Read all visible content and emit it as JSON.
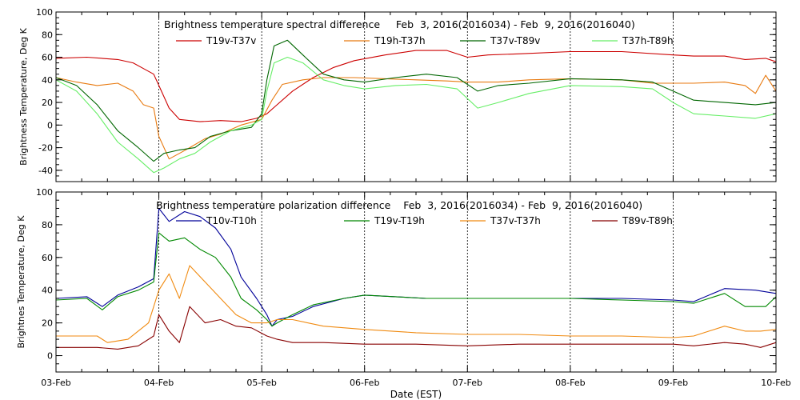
{
  "x_axis": {
    "label": "Date (EST)",
    "tick_labels": [
      "03-Feb",
      "04-Feb",
      "05-Feb",
      "06-Feb",
      "07-Feb",
      "08-Feb",
      "09-Feb",
      "10-Feb"
    ]
  },
  "chart_data": [
    {
      "type": "line",
      "title": "Brightness temperature spectral difference     Feb  3, 2016(2016034) - Feb  9, 2016(2016040)",
      "xlabel": "",
      "ylabel": "Brightness Temperature, Deg K",
      "x_unit": "days",
      "xlim": [
        0,
        7
      ],
      "ylim": [
        -50,
        100
      ],
      "yticks": [
        -40,
        -20,
        0,
        20,
        40,
        60,
        80,
        100
      ],
      "grid": "vertical dotted at each day",
      "legend": "top, in two rows inside plot",
      "series": [
        {
          "name": "T19v-T37v",
          "color": "#cc0000",
          "points": [
            [
              0,
              59
            ],
            [
              0.3,
              60
            ],
            [
              0.6,
              58
            ],
            [
              0.75,
              55
            ],
            [
              0.85,
              50
            ],
            [
              0.95,
              45
            ],
            [
              1.0,
              35
            ],
            [
              1.1,
              15
            ],
            [
              1.2,
              5
            ],
            [
              1.4,
              3
            ],
            [
              1.6,
              4
            ],
            [
              1.8,
              3
            ],
            [
              1.95,
              6
            ],
            [
              2.05,
              10
            ],
            [
              2.15,
              18
            ],
            [
              2.3,
              30
            ],
            [
              2.5,
              42
            ],
            [
              2.7,
              51
            ],
            [
              2.9,
              57
            ],
            [
              3.2,
              62
            ],
            [
              3.5,
              66
            ],
            [
              3.8,
              66
            ],
            [
              4.0,
              60
            ],
            [
              4.2,
              62
            ],
            [
              4.5,
              63
            ],
            [
              5.0,
              65
            ],
            [
              5.5,
              65
            ],
            [
              6.0,
              62
            ],
            [
              6.2,
              61
            ],
            [
              6.5,
              61
            ],
            [
              6.7,
              58
            ],
            [
              6.9,
              59
            ],
            [
              7.0,
              56
            ]
          ]
        },
        {
          "name": "T19h-T37h",
          "color": "#e87a10",
          "points": [
            [
              0,
              42
            ],
            [
              0.2,
              38
            ],
            [
              0.4,
              35
            ],
            [
              0.6,
              37
            ],
            [
              0.75,
              30
            ],
            [
              0.85,
              18
            ],
            [
              0.95,
              15
            ],
            [
              1.0,
              -10
            ],
            [
              1.1,
              -30
            ],
            [
              1.2,
              -25
            ],
            [
              1.3,
              -20
            ],
            [
              1.45,
              -12
            ],
            [
              1.6,
              -8
            ],
            [
              1.8,
              0
            ],
            [
              2.0,
              5
            ],
            [
              2.1,
              22
            ],
            [
              2.2,
              36
            ],
            [
              2.4,
              40
            ],
            [
              2.6,
              42
            ],
            [
              2.9,
              42
            ],
            [
              3.2,
              41
            ],
            [
              3.5,
              40
            ],
            [
              3.8,
              39
            ],
            [
              4.0,
              38
            ],
            [
              4.3,
              38
            ],
            [
              4.6,
              40
            ],
            [
              5.0,
              41
            ],
            [
              5.5,
              40
            ],
            [
              5.8,
              37
            ],
            [
              6.0,
              37
            ],
            [
              6.2,
              37
            ],
            [
              6.5,
              38
            ],
            [
              6.7,
              35
            ],
            [
              6.8,
              28
            ],
            [
              6.9,
              44
            ],
            [
              7.0,
              30
            ]
          ]
        },
        {
          "name": "T37v-T89v",
          "color": "#006600",
          "points": [
            [
              0,
              42
            ],
            [
              0.2,
              35
            ],
            [
              0.4,
              18
            ],
            [
              0.6,
              -5
            ],
            [
              0.8,
              -20
            ],
            [
              0.95,
              -32
            ],
            [
              1.05,
              -25
            ],
            [
              1.2,
              -22
            ],
            [
              1.35,
              -20
            ],
            [
              1.5,
              -10
            ],
            [
              1.7,
              -5
            ],
            [
              1.9,
              -2
            ],
            [
              2.0,
              10
            ],
            [
              2.05,
              40
            ],
            [
              2.12,
              70
            ],
            [
              2.25,
              75
            ],
            [
              2.4,
              62
            ],
            [
              2.6,
              45
            ],
            [
              2.8,
              40
            ],
            [
              3.0,
              38
            ],
            [
              3.3,
              42
            ],
            [
              3.6,
              45
            ],
            [
              3.9,
              42
            ],
            [
              4.1,
              30
            ],
            [
              4.3,
              35
            ],
            [
              4.6,
              37
            ],
            [
              5.0,
              41
            ],
            [
              5.5,
              40
            ],
            [
              5.8,
              38
            ],
            [
              6.0,
              30
            ],
            [
              6.2,
              22
            ],
            [
              6.5,
              20
            ],
            [
              6.8,
              18
            ],
            [
              7.0,
              20
            ]
          ]
        },
        {
          "name": "T37h-T89h",
          "color": "#66ee66",
          "points": [
            [
              0,
              40
            ],
            [
              0.2,
              30
            ],
            [
              0.4,
              10
            ],
            [
              0.6,
              -15
            ],
            [
              0.8,
              -30
            ],
            [
              0.95,
              -42
            ],
            [
              1.05,
              -38
            ],
            [
              1.2,
              -30
            ],
            [
              1.35,
              -25
            ],
            [
              1.5,
              -15
            ],
            [
              1.7,
              -5
            ],
            [
              1.9,
              0
            ],
            [
              2.0,
              5
            ],
            [
              2.05,
              30
            ],
            [
              2.12,
              55
            ],
            [
              2.25,
              60
            ],
            [
              2.4,
              55
            ],
            [
              2.6,
              40
            ],
            [
              2.8,
              35
            ],
            [
              3.0,
              32
            ],
            [
              3.3,
              35
            ],
            [
              3.6,
              36
            ],
            [
              3.9,
              32
            ],
            [
              4.1,
              15
            ],
            [
              4.3,
              20
            ],
            [
              4.6,
              28
            ],
            [
              5.0,
              35
            ],
            [
              5.5,
              34
            ],
            [
              5.8,
              32
            ],
            [
              6.0,
              20
            ],
            [
              6.2,
              10
            ],
            [
              6.5,
              8
            ],
            [
              6.8,
              6
            ],
            [
              7.0,
              10
            ]
          ]
        }
      ]
    },
    {
      "type": "line",
      "title": "Brightness temperature polarization difference    Feb  3, 2016(2016034) - Feb  9, 2016(2016040)",
      "xlabel": "Date (EST)",
      "ylabel": "Brightnes Temperature, Deg K",
      "x_unit": "days",
      "xlim": [
        0,
        7
      ],
      "ylim": [
        -10,
        100
      ],
      "yticks": [
        0,
        20,
        40,
        60,
        80,
        100
      ],
      "grid": "vertical dotted at each day",
      "legend": "top, single row inside plot",
      "series": [
        {
          "name": "T10v-T10h",
          "color": "#000099",
          "points": [
            [
              0,
              35
            ],
            [
              0.3,
              36
            ],
            [
              0.45,
              30
            ],
            [
              0.6,
              37
            ],
            [
              0.8,
              42
            ],
            [
              0.95,
              47
            ],
            [
              1.0,
              90
            ],
            [
              1.1,
              82
            ],
            [
              1.25,
              88
            ],
            [
              1.4,
              85
            ],
            [
              1.55,
              78
            ],
            [
              1.7,
              65
            ],
            [
              1.8,
              48
            ],
            [
              1.95,
              35
            ],
            [
              2.05,
              25
            ],
            [
              2.1,
              18
            ],
            [
              2.15,
              22
            ],
            [
              2.3,
              24
            ],
            [
              2.5,
              30
            ],
            [
              2.8,
              35
            ],
            [
              3.0,
              37
            ],
            [
              3.3,
              36
            ],
            [
              3.6,
              35
            ],
            [
              4.0,
              35
            ],
            [
              4.5,
              35
            ],
            [
              5.0,
              35
            ],
            [
              5.5,
              35
            ],
            [
              6.0,
              34
            ],
            [
              6.2,
              33
            ],
            [
              6.5,
              41
            ],
            [
              6.8,
              40
            ],
            [
              7.0,
              38
            ]
          ]
        },
        {
          "name": "T19v-T19h",
          "color": "#008800",
          "points": [
            [
              0,
              34
            ],
            [
              0.3,
              35
            ],
            [
              0.45,
              28
            ],
            [
              0.6,
              36
            ],
            [
              0.8,
              40
            ],
            [
              0.95,
              45
            ],
            [
              1.0,
              75
            ],
            [
              1.1,
              70
            ],
            [
              1.25,
              72
            ],
            [
              1.4,
              65
            ],
            [
              1.55,
              60
            ],
            [
              1.7,
              48
            ],
            [
              1.8,
              35
            ],
            [
              1.95,
              28
            ],
            [
              2.05,
              22
            ],
            [
              2.1,
              18
            ],
            [
              2.15,
              20
            ],
            [
              2.3,
              25
            ],
            [
              2.5,
              31
            ],
            [
              2.8,
              35
            ],
            [
              3.0,
              37
            ],
            [
              3.3,
              36
            ],
            [
              3.6,
              35
            ],
            [
              4.0,
              35
            ],
            [
              4.5,
              35
            ],
            [
              5.0,
              35
            ],
            [
              5.5,
              34
            ],
            [
              6.0,
              33
            ],
            [
              6.2,
              32
            ],
            [
              6.5,
              38
            ],
            [
              6.7,
              30
            ],
            [
              6.9,
              30
            ],
            [
              7.0,
              36
            ]
          ]
        },
        {
          "name": "T37v-T37h",
          "color": "#f08a10",
          "points": [
            [
              0,
              12
            ],
            [
              0.4,
              12
            ],
            [
              0.5,
              8
            ],
            [
              0.7,
              10
            ],
            [
              0.9,
              20
            ],
            [
              1.0,
              40
            ],
            [
              1.1,
              50
            ],
            [
              1.2,
              35
            ],
            [
              1.3,
              55
            ],
            [
              1.45,
              45
            ],
            [
              1.6,
              35
            ],
            [
              1.75,
              25
            ],
            [
              1.9,
              20
            ],
            [
              2.05,
              20
            ],
            [
              2.15,
              22
            ],
            [
              2.3,
              22
            ],
            [
              2.6,
              18
            ],
            [
              3.0,
              16
            ],
            [
              3.5,
              14
            ],
            [
              4.0,
              13
            ],
            [
              4.5,
              13
            ],
            [
              5.0,
              12
            ],
            [
              5.5,
              12
            ],
            [
              6.0,
              11
            ],
            [
              6.2,
              12
            ],
            [
              6.5,
              18
            ],
            [
              6.7,
              15
            ],
            [
              6.85,
              15
            ],
            [
              7.0,
              16
            ]
          ]
        },
        {
          "name": "T89v-T89h",
          "color": "#880000",
          "points": [
            [
              0,
              5
            ],
            [
              0.4,
              5
            ],
            [
              0.6,
              4
            ],
            [
              0.8,
              6
            ],
            [
              0.95,
              12
            ],
            [
              1.0,
              25
            ],
            [
              1.1,
              15
            ],
            [
              1.2,
              8
            ],
            [
              1.3,
              30
            ],
            [
              1.45,
              20
            ],
            [
              1.6,
              22
            ],
            [
              1.75,
              18
            ],
            [
              1.9,
              17
            ],
            [
              2.05,
              12
            ],
            [
              2.15,
              10
            ],
            [
              2.3,
              8
            ],
            [
              2.6,
              8
            ],
            [
              3.0,
              7
            ],
            [
              3.5,
              7
            ],
            [
              4.0,
              6
            ],
            [
              4.5,
              7
            ],
            [
              5.0,
              7
            ],
            [
              5.5,
              7
            ],
            [
              6.0,
              7
            ],
            [
              6.2,
              6
            ],
            [
              6.5,
              8
            ],
            [
              6.7,
              7
            ],
            [
              6.85,
              5
            ],
            [
              7.0,
              8
            ]
          ]
        }
      ]
    }
  ]
}
